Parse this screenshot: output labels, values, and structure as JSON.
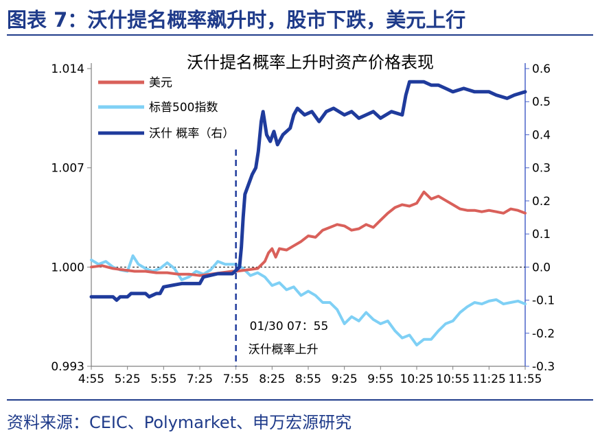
{
  "figure_title": "图表 7：沃什提名概率飙升时，股市下跌，美元上行",
  "source": "资料来源：CEIC、Polymarket、申万宏源研究",
  "colors": {
    "usd": "#d9605a",
    "spx": "#7fd0f5",
    "prob": "#1f3b9c",
    "brand": "#1f3b8a"
  },
  "chart_data": {
    "type": "line",
    "title": "沃什提名概率上升时资产价格表现",
    "x_ticks": [
      "4:55",
      "5:25",
      "5:55",
      "7:25",
      "7:55",
      "8:25",
      "8:55",
      "9:25",
      "9:55",
      "10:25",
      "10:55",
      "11:25",
      "11:55"
    ],
    "y_left": {
      "ticks": [
        "1.014",
        "1.007",
        "1.000",
        "0.993"
      ],
      "range": [
        0.993,
        1.014
      ]
    },
    "y_right": {
      "ticks": [
        "0.6",
        "0.5",
        "0.4",
        "0.3",
        "0.2",
        "0.1",
        "0.0",
        "-0.1",
        "-0.2",
        "-0.3"
      ],
      "range": [
        -0.3,
        0.6
      ]
    },
    "legend": [
      "美元",
      "标普500指数",
      "沃什 概率（右）"
    ],
    "annotation": {
      "x": "7:55",
      "date": "01/30",
      "time": "07:55",
      "text": "沃什概率上升"
    },
    "reference_line": 1.0,
    "series": [
      {
        "name": "美元",
        "axis": "left",
        "color": "#d9605a",
        "points": [
          [
            0,
            1.0
          ],
          [
            0.3,
            1.0001
          ],
          [
            0.6,
            0.9999
          ],
          [
            0.9,
            0.9998
          ],
          [
            1.2,
            0.9997
          ],
          [
            1.5,
            0.9997
          ],
          [
            1.8,
            0.9996
          ],
          [
            2.1,
            0.9996
          ],
          [
            2.4,
            0.9995
          ],
          [
            2.7,
            0.9995
          ],
          [
            3.0,
            0.9994
          ],
          [
            3.3,
            0.9995
          ],
          [
            3.6,
            0.9996
          ],
          [
            3.9,
            0.9997
          ],
          [
            4.0,
            0.9997
          ],
          [
            4.3,
            0.9998
          ],
          [
            4.6,
            0.9999
          ],
          [
            4.8,
            1.0004
          ],
          [
            4.9,
            1.001
          ],
          [
            5.0,
            1.0013
          ],
          [
            5.1,
            1.0007
          ],
          [
            5.2,
            1.0013
          ],
          [
            5.4,
            1.0012
          ],
          [
            5.6,
            1.0015
          ],
          [
            5.8,
            1.0018
          ],
          [
            6.0,
            1.0022
          ],
          [
            6.2,
            1.0021
          ],
          [
            6.4,
            1.0026
          ],
          [
            6.6,
            1.0028
          ],
          [
            6.8,
            1.003
          ],
          [
            7.0,
            1.0029
          ],
          [
            7.2,
            1.0026
          ],
          [
            7.4,
            1.0027
          ],
          [
            7.6,
            1.003
          ],
          [
            7.8,
            1.0028
          ],
          [
            8.0,
            1.0033
          ],
          [
            8.2,
            1.0038
          ],
          [
            8.4,
            1.0042
          ],
          [
            8.6,
            1.0044
          ],
          [
            8.8,
            1.0043
          ],
          [
            9.0,
            1.0045
          ],
          [
            9.2,
            1.0053
          ],
          [
            9.4,
            1.0048
          ],
          [
            9.6,
            1.005
          ],
          [
            9.8,
            1.0047
          ],
          [
            10.0,
            1.0044
          ],
          [
            10.2,
            1.0041
          ],
          [
            10.4,
            1.004
          ],
          [
            10.6,
            1.004
          ],
          [
            10.8,
            1.0039
          ],
          [
            11.0,
            1.004
          ],
          [
            11.2,
            1.0039
          ],
          [
            11.4,
            1.0038
          ],
          [
            11.6,
            1.0041
          ],
          [
            11.8,
            1.004
          ],
          [
            12.0,
            1.0038
          ]
        ]
      },
      {
        "name": "标普500指数",
        "axis": "left",
        "color": "#7fd0f5",
        "points": [
          [
            0,
            1.0005
          ],
          [
            0.2,
            1.0002
          ],
          [
            0.4,
            1.0004
          ],
          [
            0.6,
            1.0
          ],
          [
            0.8,
            0.9998
          ],
          [
            1.0,
            0.9997
          ],
          [
            1.15,
            1.0008
          ],
          [
            1.3,
            1.0002
          ],
          [
            1.5,
            0.9999
          ],
          [
            1.7,
            0.9997
          ],
          [
            1.9,
            0.9999
          ],
          [
            2.1,
            1.0003
          ],
          [
            2.3,
            0.9999
          ],
          [
            2.5,
            0.9991
          ],
          [
            2.7,
            0.9993
          ],
          [
            2.9,
            0.9997
          ],
          [
            3.1,
            0.9995
          ],
          [
            3.3,
            0.9998
          ],
          [
            3.5,
            1.0004
          ],
          [
            3.7,
            1.0002
          ],
          [
            3.9,
            1.0002
          ],
          [
            4.0,
            1.0002
          ],
          [
            4.2,
            0.9999
          ],
          [
            4.4,
            0.9994
          ],
          [
            4.6,
            0.9996
          ],
          [
            4.8,
            0.9993
          ],
          [
            5.0,
            0.9987
          ],
          [
            5.2,
            0.9989
          ],
          [
            5.4,
            0.9984
          ],
          [
            5.6,
            0.9986
          ],
          [
            5.8,
            0.998
          ],
          [
            6.0,
            0.9983
          ],
          [
            6.2,
            0.998
          ],
          [
            6.4,
            0.9975
          ],
          [
            6.6,
            0.9975
          ],
          [
            6.8,
            0.997
          ],
          [
            7.0,
            0.996
          ],
          [
            7.2,
            0.9965
          ],
          [
            7.4,
            0.9962
          ],
          [
            7.6,
            0.9968
          ],
          [
            7.8,
            0.9963
          ],
          [
            8.0,
            0.996
          ],
          [
            8.2,
            0.9962
          ],
          [
            8.4,
            0.9955
          ],
          [
            8.6,
            0.995
          ],
          [
            8.8,
            0.9952
          ],
          [
            9.0,
            0.9945
          ],
          [
            9.2,
            0.9949
          ],
          [
            9.4,
            0.9949
          ],
          [
            9.6,
            0.9955
          ],
          [
            9.8,
            0.996
          ],
          [
            10.0,
            0.9962
          ],
          [
            10.2,
            0.9968
          ],
          [
            10.4,
            0.9972
          ],
          [
            10.6,
            0.9975
          ],
          [
            10.8,
            0.9974
          ],
          [
            11.0,
            0.9976
          ],
          [
            11.2,
            0.9977
          ],
          [
            11.4,
            0.9974
          ],
          [
            11.6,
            0.9975
          ],
          [
            11.8,
            0.9976
          ],
          [
            12.0,
            0.9974
          ]
        ]
      },
      {
        "name": "沃什 概率（右）",
        "axis": "right",
        "color": "#1f3b9c",
        "points": [
          [
            0,
            -0.09
          ],
          [
            0.6,
            -0.09
          ],
          [
            0.7,
            -0.1
          ],
          [
            0.8,
            -0.09
          ],
          [
            1.0,
            -0.09
          ],
          [
            1.1,
            -0.08
          ],
          [
            1.5,
            -0.08
          ],
          [
            1.6,
            -0.09
          ],
          [
            1.8,
            -0.08
          ],
          [
            1.9,
            -0.08
          ],
          [
            2.0,
            -0.06
          ],
          [
            2.5,
            -0.05
          ],
          [
            3.0,
            -0.05
          ],
          [
            3.1,
            -0.03
          ],
          [
            3.5,
            -0.02
          ],
          [
            3.9,
            -0.02
          ],
          [
            4.0,
            -0.01
          ],
          [
            4.1,
            0.0
          ],
          [
            4.15,
            0.06
          ],
          [
            4.2,
            0.15
          ],
          [
            4.25,
            0.22
          ],
          [
            4.35,
            0.25
          ],
          [
            4.45,
            0.28
          ],
          [
            4.55,
            0.3
          ],
          [
            4.62,
            0.35
          ],
          [
            4.7,
            0.44
          ],
          [
            4.75,
            0.47
          ],
          [
            4.85,
            0.4
          ],
          [
            4.95,
            0.38
          ],
          [
            5.05,
            0.41
          ],
          [
            5.15,
            0.37
          ],
          [
            5.3,
            0.4
          ],
          [
            5.5,
            0.42
          ],
          [
            5.6,
            0.46
          ],
          [
            5.7,
            0.48
          ],
          [
            5.9,
            0.46
          ],
          [
            6.1,
            0.47
          ],
          [
            6.3,
            0.44
          ],
          [
            6.5,
            0.47
          ],
          [
            6.7,
            0.48
          ],
          [
            7.0,
            0.46
          ],
          [
            7.2,
            0.47
          ],
          [
            7.4,
            0.45
          ],
          [
            7.6,
            0.46
          ],
          [
            7.8,
            0.47
          ],
          [
            8.0,
            0.45
          ],
          [
            8.3,
            0.47
          ],
          [
            8.6,
            0.46
          ],
          [
            8.7,
            0.52
          ],
          [
            8.8,
            0.56
          ],
          [
            9.0,
            0.56
          ],
          [
            9.2,
            0.56
          ],
          [
            9.4,
            0.55
          ],
          [
            9.6,
            0.55
          ],
          [
            9.8,
            0.54
          ],
          [
            10.0,
            0.53
          ],
          [
            10.3,
            0.54
          ],
          [
            10.6,
            0.53
          ],
          [
            10.8,
            0.53
          ],
          [
            11.0,
            0.53
          ],
          [
            11.2,
            0.52
          ],
          [
            11.5,
            0.51
          ],
          [
            11.7,
            0.52
          ],
          [
            12.0,
            0.53
          ]
        ]
      }
    ]
  }
}
